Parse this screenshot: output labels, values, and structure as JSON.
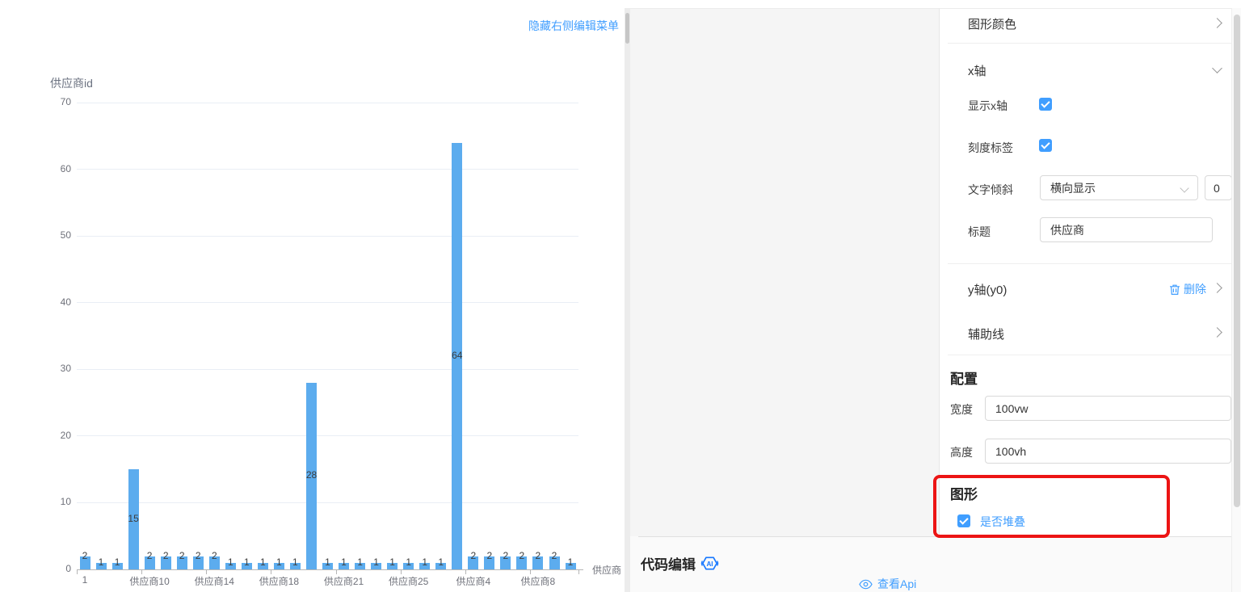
{
  "chart_panel": {
    "hide_menu_link": "隐藏右侧编辑菜单"
  },
  "chart_data": {
    "type": "bar",
    "title": "供应商id",
    "x_axis_name": "供应商",
    "ylim": [
      0,
      70
    ],
    "y_ticks": [
      0,
      10,
      20,
      30,
      40,
      50,
      60,
      70
    ],
    "grid": true,
    "legend": "none",
    "bar_color": "#5CACEE",
    "values": [
      2,
      1,
      1,
      15,
      2,
      2,
      2,
      2,
      2,
      1,
      1,
      1,
      1,
      1,
      28,
      1,
      1,
      1,
      1,
      1,
      1,
      1,
      1,
      64,
      2,
      2,
      2,
      2,
      2,
      2,
      1
    ],
    "value_labels_shown": true,
    "x_label_interval": 4,
    "x_tick_labels": [
      {
        "i": 0,
        "label": "1"
      },
      {
        "i": 4,
        "label": "供应商10"
      },
      {
        "i": 8,
        "label": "供应商14"
      },
      {
        "i": 12,
        "label": "供应商18"
      },
      {
        "i": 16,
        "label": "供应商21"
      },
      {
        "i": 20,
        "label": "供应商25"
      },
      {
        "i": 24,
        "label": "供应商4"
      },
      {
        "i": 28,
        "label": "供应商8"
      }
    ]
  },
  "right_panel": {
    "graph_color": {
      "label": "图形颜色"
    },
    "x_axis": {
      "header": "x轴",
      "show_x_axis_label": "显示x轴",
      "show_x_axis_checked": true,
      "tick_label_label": "刻度标签",
      "tick_label_checked": true,
      "text_rotate_label": "文字倾斜",
      "text_rotate_value": "横向显示",
      "text_rotate_number": "0",
      "title_label": "标题",
      "title_value": "供应商"
    },
    "y_axis": {
      "header": "y轴(y0)",
      "delete_label": "删除"
    },
    "guide_line": {
      "header": "辅助线"
    },
    "config": {
      "heading": "配置",
      "width_label": "宽度",
      "width_value": "100vw",
      "height_label": "高度",
      "height_value": "100vh"
    },
    "graph": {
      "heading": "图形",
      "stack_label": "是否堆叠",
      "stack_checked": true
    }
  },
  "bottom_bar": {
    "code_edit_label": "代码编辑",
    "ai_badge": "AI",
    "view_api_label": "查看Api"
  },
  "colors": {
    "accent_blue": "#409eff",
    "bar_blue": "#5CACEE",
    "annotation_red": "#ec1414",
    "ai_icon_blue": "#1677ff"
  }
}
